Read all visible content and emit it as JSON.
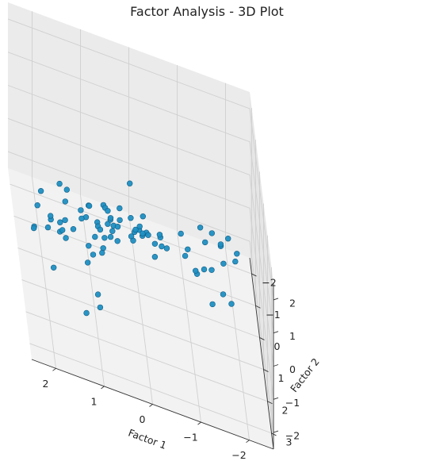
{
  "chart_data": {
    "type": "scatter",
    "projection": "3d",
    "title": "Factor Analysis - 3D Plot",
    "xlabel": "Factor 1",
    "ylabel": "Factor 2",
    "zlabel": "",
    "xlim": [
      -2.5,
      2.5
    ],
    "ylim": [
      -2.5,
      3.5
    ],
    "zlim": [
      -2.5,
      2.5
    ],
    "xticks": [
      "−2",
      "−1",
      "0",
      "1",
      "2"
    ],
    "yticks": [
      "−2",
      "−1",
      "0",
      "1",
      "2",
      "3"
    ],
    "zticks": [
      "−2",
      "−1",
      "0",
      "1",
      "2"
    ],
    "grid": true,
    "colors": {
      "marker": "#1f8fc2",
      "marker_edge": "#0f5f88"
    },
    "points": [
      {
        "x": -1.81,
        "y": 2.27,
        "z": 1.6
      },
      {
        "x": -1.87,
        "y": 1.95,
        "z": 1.56
      },
      {
        "x": -1.73,
        "y": 1.44,
        "z": 1.45
      },
      {
        "x": -1.62,
        "y": 1.61,
        "z": 0.8
      },
      {
        "x": -1.59,
        "y": 1.3,
        "z": 1.01
      },
      {
        "x": -1.38,
        "y": 1.56,
        "z": 0.43
      },
      {
        "x": -1.66,
        "y": 0.43,
        "z": 0.27
      },
      {
        "x": -1.5,
        "y": 0.16,
        "z": 0.26
      },
      {
        "x": -1.26,
        "y": 0.14,
        "z": 0.28
      },
      {
        "x": -1.35,
        "y": 0.26,
        "z": 0.0
      },
      {
        "x": -1.13,
        "y": 0.94,
        "z": -0.42
      },
      {
        "x": -1.65,
        "y": 1.17,
        "z": -0.53
      },
      {
        "x": -1.42,
        "y": 1.29,
        "z": -0.84
      },
      {
        "x": -1.81,
        "y": 1.31,
        "z": -0.6
      },
      {
        "x": -1.28,
        "y": 0.89,
        "z": -0.25
      },
      {
        "x": -1.0,
        "y": 0.16,
        "z": -0.5
      },
      {
        "x": -0.95,
        "y": 0.13,
        "z": -0.75
      },
      {
        "x": -1.15,
        "y": 0.32,
        "z": -0.91
      },
      {
        "x": -0.87,
        "y": 0.02,
        "z": -0.23
      },
      {
        "x": -0.47,
        "y": 0.04,
        "z": -0.81
      },
      {
        "x": -0.54,
        "y": 0.49,
        "z": -0.4
      },
      {
        "x": -0.44,
        "y": 0.1,
        "z": -0.5
      },
      {
        "x": -0.08,
        "y": -0.04,
        "z": -0.78
      },
      {
        "x": -0.32,
        "y": 0.18,
        "z": -0.68
      },
      {
        "x": 0.1,
        "y": -0.66,
        "z": -1.49
      },
      {
        "x": -0.05,
        "y": -0.51,
        "z": -1.07
      },
      {
        "x": -0.21,
        "y": -0.64,
        "z": -1.19
      },
      {
        "x": -0.27,
        "y": -0.89,
        "z": -1.47
      },
      {
        "x": -0.11,
        "y": -0.36,
        "z": -1.0
      },
      {
        "x": 0.33,
        "y": -0.81,
        "z": -0.91
      },
      {
        "x": 0.45,
        "y": -0.87,
        "z": -1.56
      },
      {
        "x": 0.04,
        "y": -0.57,
        "z": -1.24
      },
      {
        "x": 0.63,
        "y": -0.13,
        "z": -0.89
      },
      {
        "x": -0.37,
        "y": -0.44,
        "z": -1.64
      },
      {
        "x": -0.06,
        "y": -0.5,
        "z": -0.95
      },
      {
        "x": 0.12,
        "y": -0.55,
        "z": -0.84
      },
      {
        "x": 0.34,
        "y": -0.63,
        "z": -1.1
      },
      {
        "x": 0.55,
        "y": -0.44,
        "z": -1.02
      },
      {
        "x": 0.43,
        "y": -0.05,
        "z": -0.79
      },
      {
        "x": 0.52,
        "y": -0.3,
        "z": -1.21
      },
      {
        "x": 0.83,
        "y": -0.34,
        "z": -1.15
      },
      {
        "x": 0.69,
        "y": -0.51,
        "z": -0.72
      },
      {
        "x": 0.63,
        "y": -0.79,
        "z": -1.04
      },
      {
        "x": 0.86,
        "y": 0.21,
        "z": -0.76
      },
      {
        "x": 0.99,
        "y": -0.58,
        "z": -0.96
      },
      {
        "x": 1.04,
        "y": -0.61,
        "z": -1.37
      },
      {
        "x": 1.17,
        "y": -0.14,
        "z": -1.03
      },
      {
        "x": 1.34,
        "y": -0.15,
        "z": -1.45
      },
      {
        "x": 1.47,
        "y": -0.64,
        "z": -1.72
      },
      {
        "x": 1.47,
        "y": -0.61,
        "z": -1.13
      },
      {
        "x": 1.61,
        "y": -0.19,
        "z": -1.43
      },
      {
        "x": 1.02,
        "y": -0.2,
        "z": -1.83
      },
      {
        "x": 0.85,
        "y": -0.66,
        "z": -1.91
      },
      {
        "x": 0.64,
        "y": -0.82,
        "z": -1.98
      },
      {
        "x": 0.37,
        "y": -0.84,
        "z": -1.95
      },
      {
        "x": 0.47,
        "y": -1.37,
        "z": -1.82
      },
      {
        "x": 0.5,
        "y": -0.98,
        "z": -2.03
      },
      {
        "x": 0.7,
        "y": -1.18,
        "z": -2.11
      },
      {
        "x": 1.34,
        "y": -1.79,
        "z": -1.84
      },
      {
        "x": 0.86,
        "y": -1.99,
        "z": -2.26
      },
      {
        "x": 1.06,
        "y": -1.68,
        "z": -2.2
      },
      {
        "x": 1.46,
        "y": -2.16,
        "z": -2.08
      },
      {
        "x": 2.01,
        "y": -1.04,
        "z": -1.95
      },
      {
        "x": 1.9,
        "y": -1.51,
        "z": -1.91
      },
      {
        "x": 0.79,
        "y": 0.68,
        "z": -0.93
      },
      {
        "x": 0.82,
        "y": 0.76,
        "z": -1.01
      },
      {
        "x": 1.01,
        "y": 0.83,
        "z": -1.1
      },
      {
        "x": 1.57,
        "y": 0.77,
        "z": -0.96
      },
      {
        "x": 1.68,
        "y": 0.63,
        "z": -0.96
      },
      {
        "x": 2.24,
        "y": 0.94,
        "z": -0.81
      },
      {
        "x": -0.02,
        "y": 0.81,
        "z": 0.59
      },
      {
        "x": 0.24,
        "y": 1.53,
        "z": 0.41
      },
      {
        "x": -0.35,
        "y": 1.0,
        "z": 0.4
      },
      {
        "x": 0.13,
        "y": 0.76,
        "z": 0.06
      },
      {
        "x": 0.21,
        "y": 0.31,
        "z": 0.98
      },
      {
        "x": 0.75,
        "y": 1.34,
        "z": 0.85
      },
      {
        "x": 2.01,
        "y": 2.36,
        "z": 0.89
      },
      {
        "x": 2.05,
        "y": 2.1,
        "z": 0.38
      },
      {
        "x": 1.73,
        "y": 1.84,
        "z": 0.22
      },
      {
        "x": 1.25,
        "y": 2.39,
        "z": 0.03
      },
      {
        "x": 1.98,
        "y": 2.69,
        "z": -0.23
      },
      {
        "x": 1.06,
        "y": 2.65,
        "z": -0.58
      },
      {
        "x": 1.3,
        "y": 2.68,
        "z": -1.24
      },
      {
        "x": 1.04,
        "y": 2.96,
        "z": -0.66
      },
      {
        "x": 2.37,
        "y": 2.45,
        "z": 0.52
      },
      {
        "x": 2.08,
        "y": 3.11,
        "z": 1.68
      }
    ]
  }
}
